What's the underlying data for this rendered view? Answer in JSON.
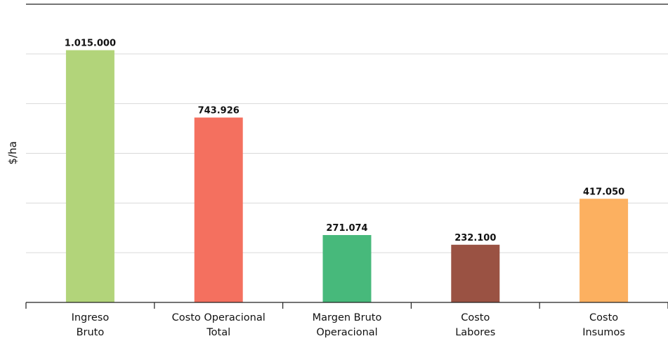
{
  "chart_data": {
    "type": "bar",
    "title": "",
    "xlabel": "",
    "ylabel": "$/ha",
    "categories": [
      [
        "Ingreso",
        "Bruto"
      ],
      [
        "Costo Operacional",
        "Total"
      ],
      [
        "Margen Bruto",
        "Operacional"
      ],
      [
        "Costo",
        "Labores"
      ],
      [
        "Costo",
        "Insumos"
      ]
    ],
    "values": [
      1015000,
      743926,
      271074,
      232100,
      417050
    ],
    "value_labels": [
      "1.015.000",
      "743.926",
      "271.074",
      "232.100",
      "417.050"
    ],
    "colors": [
      "#b2d47a",
      "#f4705f",
      "#47b97b",
      "#9a5243",
      "#fcb060"
    ],
    "ylim": [
      0,
      1200000
    ],
    "grid": true,
    "legend": "none"
  }
}
